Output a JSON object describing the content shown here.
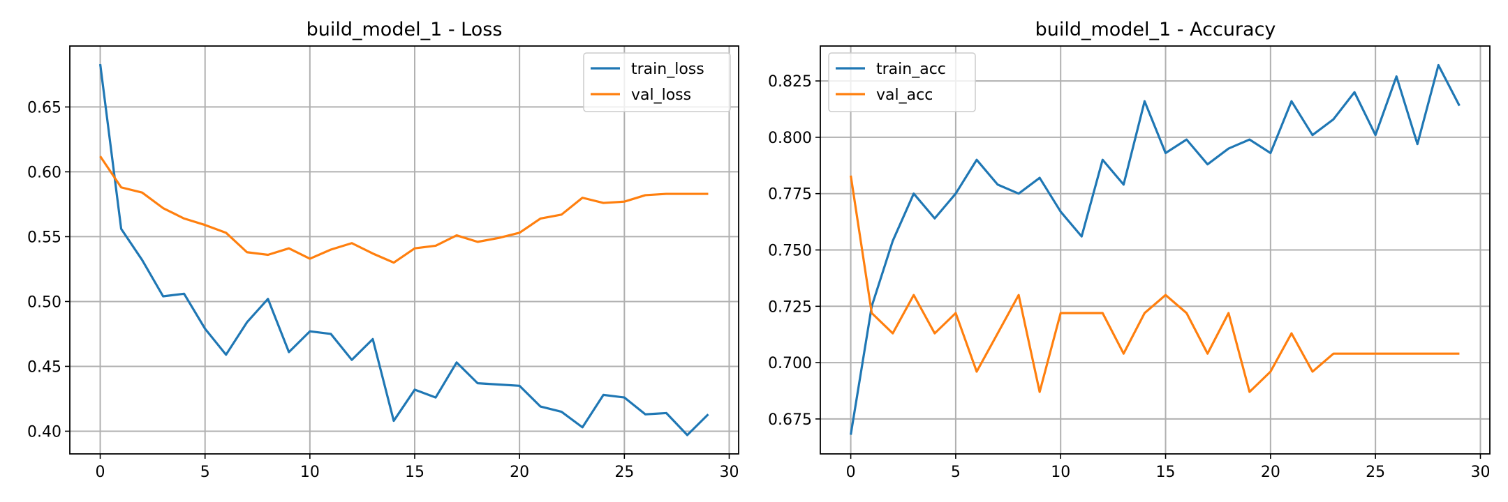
{
  "chart_data": [
    {
      "type": "line",
      "title": "build_model_1 - Loss",
      "xlabel": "",
      "ylabel": "",
      "xlim": [
        -1.45,
        30.45
      ],
      "ylim": [
        0.3825,
        0.697
      ],
      "xticks": [
        0,
        5,
        10,
        15,
        20,
        25,
        30
      ],
      "yticks": [
        0.4,
        0.45,
        0.5,
        0.55,
        0.6,
        0.65
      ],
      "ytick_labels": [
        "0.40",
        "0.45",
        "0.50",
        "0.55",
        "0.60",
        "0.65"
      ],
      "grid": true,
      "legend_position": "top-right",
      "x": [
        0,
        1,
        2,
        3,
        4,
        5,
        6,
        7,
        8,
        9,
        10,
        11,
        12,
        13,
        14,
        15,
        16,
        17,
        18,
        19,
        20,
        21,
        22,
        23,
        24,
        25,
        26,
        27,
        28,
        29
      ],
      "series": [
        {
          "name": "train_loss",
          "color": "#1f77b4",
          "values": [
            0.683,
            0.556,
            0.532,
            0.504,
            0.506,
            0.479,
            0.459,
            0.484,
            0.502,
            0.461,
            0.477,
            0.475,
            0.455,
            0.471,
            0.408,
            0.432,
            0.426,
            0.453,
            0.437,
            0.436,
            0.435,
            0.419,
            0.415,
            0.403,
            0.428,
            0.426,
            0.413,
            0.414,
            0.397,
            0.413
          ]
        },
        {
          "name": "val_loss",
          "color": "#ff7f0e",
          "values": [
            0.612,
            0.588,
            0.584,
            0.572,
            0.564,
            0.559,
            0.553,
            0.538,
            0.536,
            0.541,
            0.533,
            0.54,
            0.545,
            0.537,
            0.53,
            0.541,
            0.543,
            0.551,
            0.546,
            0.549,
            0.553,
            0.564,
            0.567,
            0.58,
            0.576,
            0.577,
            0.582,
            0.583,
            0.583,
            0.583
          ]
        }
      ]
    },
    {
      "type": "line",
      "title": "build_model_1 - Accuracy",
      "xlabel": "",
      "ylabel": "",
      "xlim": [
        -1.45,
        30.45
      ],
      "ylim": [
        0.6595,
        0.8405
      ],
      "xticks": [
        0,
        5,
        10,
        15,
        20,
        25,
        30
      ],
      "yticks": [
        0.675,
        0.7,
        0.725,
        0.75,
        0.775,
        0.8,
        0.825
      ],
      "ytick_labels": [
        "0.675",
        "0.700",
        "0.725",
        "0.750",
        "0.775",
        "0.800",
        "0.825"
      ],
      "grid": true,
      "legend_position": "top-left",
      "x": [
        0,
        1,
        2,
        3,
        4,
        5,
        6,
        7,
        8,
        9,
        10,
        11,
        12,
        13,
        14,
        15,
        16,
        17,
        18,
        19,
        20,
        21,
        22,
        23,
        24,
        25,
        26,
        27,
        28,
        29
      ],
      "series": [
        {
          "name": "train_acc",
          "color": "#1f77b4",
          "values": [
            0.668,
            0.725,
            0.754,
            0.775,
            0.764,
            0.775,
            0.79,
            0.779,
            0.775,
            0.782,
            0.767,
            0.756,
            0.79,
            0.779,
            0.816,
            0.793,
            0.799,
            0.788,
            0.795,
            0.799,
            0.793,
            0.816,
            0.801,
            0.808,
            0.82,
            0.801,
            0.827,
            0.797,
            0.832,
            0.814
          ]
        },
        {
          "name": "val_acc",
          "color": "#ff7f0e",
          "values": [
            0.783,
            0.722,
            0.713,
            0.73,
            0.713,
            0.722,
            0.696,
            0.713,
            0.73,
            0.687,
            0.722,
            0.722,
            0.722,
            0.704,
            0.722,
            0.73,
            0.722,
            0.704,
            0.722,
            0.687,
            0.696,
            0.713,
            0.696,
            0.704,
            0.704,
            0.704,
            0.704,
            0.704,
            0.704,
            0.704
          ]
        }
      ]
    }
  ]
}
